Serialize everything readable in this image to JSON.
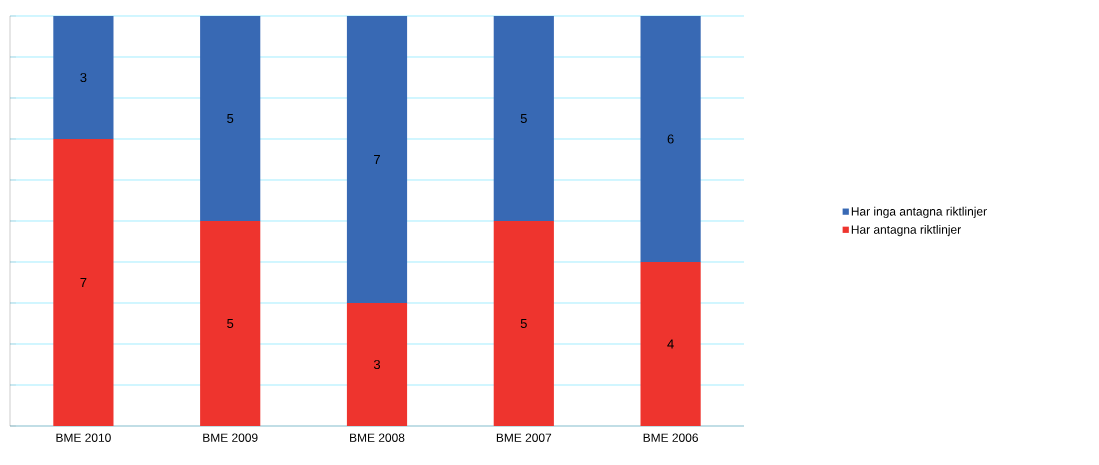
{
  "chart_data": {
    "type": "bar",
    "stacked": true,
    "categories": [
      "BME 2010",
      "BME 2009",
      "BME 2008",
      "BME 2007",
      "BME 2006"
    ],
    "series": [
      {
        "name": "Har antagna riktlinjer",
        "color": "#ee342e",
        "values": [
          7,
          5,
          3,
          5,
          4
        ]
      },
      {
        "name": "Har inga antagna riktlinjer",
        "color": "#3869b4",
        "values": [
          3,
          5,
          7,
          5,
          6
        ]
      }
    ],
    "ylim": [
      0,
      10
    ],
    "yticks": [
      {
        "value": 0,
        "label": null
      },
      {
        "value": 1,
        "label": null
      },
      {
        "value": 2,
        "label": null
      },
      {
        "value": 3,
        "label": null
      },
      {
        "value": 4,
        "label": null
      },
      {
        "value": 5,
        "label": null
      },
      {
        "value": 6,
        "label": null
      },
      {
        "value": 7,
        "label": null
      },
      {
        "value": 8,
        "label": null
      },
      {
        "value": 9,
        "label": null
      },
      {
        "value": 10,
        "label": null
      }
    ],
    "grid": "y",
    "legend": "right",
    "data_labels": true
  }
}
